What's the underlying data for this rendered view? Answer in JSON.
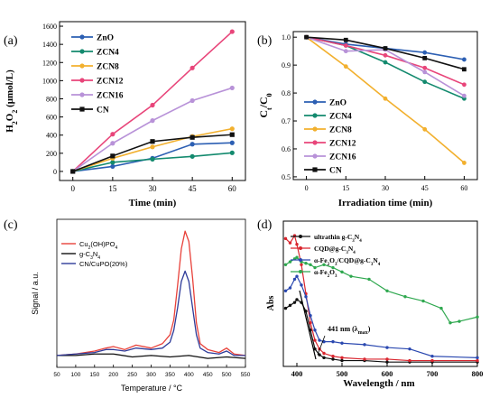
{
  "chart_data": [
    {
      "panel": "(a)",
      "type": "line",
      "xlabel": "Time (min)",
      "ylabel": "H2O2 (μmol/L)",
      "ylabel_parts": {
        "a": "H",
        "b": "2",
        "c": "O",
        "d": "2",
        "e": " (μmol/L)"
      },
      "x": [
        0,
        15,
        30,
        45,
        60
      ],
      "xlim": [
        -5,
        65
      ],
      "ylim": [
        -100,
        1650
      ],
      "xticks": [
        "0",
        "15",
        "30",
        "45",
        "60"
      ],
      "yticks": [
        "0",
        "200",
        "400",
        "600",
        "800",
        "1000",
        "1200",
        "1400",
        "1600"
      ],
      "legend_position": "top-left",
      "series": [
        {
          "name": "ZnO",
          "color": "#2c5fb3",
          "marker": "circle",
          "values": [
            0,
            55,
            145,
            300,
            315
          ]
        },
        {
          "name": "ZCN4",
          "color": "#138a6e",
          "marker": "circle",
          "values": [
            0,
            100,
            135,
            165,
            205
          ]
        },
        {
          "name": "ZCN8",
          "color": "#f2b02e",
          "marker": "circle",
          "values": [
            0,
            145,
            270,
            385,
            470
          ]
        },
        {
          "name": "ZCN12",
          "color": "#e8457a",
          "marker": "circle",
          "values": [
            0,
            410,
            730,
            1140,
            1540
          ]
        },
        {
          "name": "ZCN16",
          "color": "#b892d8",
          "marker": "circle",
          "values": [
            0,
            310,
            560,
            780,
            920
          ]
        },
        {
          "name": "CN",
          "color": "#111111",
          "marker": "square",
          "values": [
            0,
            170,
            330,
            375,
            405
          ]
        }
      ]
    },
    {
      "panel": "(b)",
      "type": "line",
      "xlabel": "Irradiation time (min)",
      "ylabel": "Ct/C0",
      "ylabel_parts": {
        "a": "C",
        "b": "t",
        "c": "/C",
        "d": "0"
      },
      "x": [
        0,
        15,
        30,
        45,
        60
      ],
      "xlim": [
        -5,
        65
      ],
      "ylim": [
        0.49,
        1.02
      ],
      "xticks": [
        "0",
        "15",
        "30",
        "45",
        "60"
      ],
      "yticks": [
        "0.5",
        "0.6",
        "0.7",
        "0.8",
        "0.9",
        "1.0"
      ],
      "legend_position": "bottom-left",
      "series": [
        {
          "name": "ZnO",
          "color": "#2c5fb3",
          "marker": "circle",
          "values": [
            1.0,
            0.975,
            0.96,
            0.945,
            0.92
          ]
        },
        {
          "name": "ZCN4",
          "color": "#138a6e",
          "marker": "circle",
          "values": [
            1.0,
            0.97,
            0.91,
            0.84,
            0.78
          ]
        },
        {
          "name": "ZCN8",
          "color": "#f2b02e",
          "marker": "circle",
          "values": [
            1.0,
            0.895,
            0.78,
            0.67,
            0.55
          ]
        },
        {
          "name": "ZCN12",
          "color": "#e8457a",
          "marker": "circle",
          "values": [
            1.0,
            0.97,
            0.935,
            0.89,
            0.83
          ]
        },
        {
          "name": "ZCN16",
          "color": "#b892d8",
          "marker": "circle",
          "values": [
            1.0,
            0.95,
            0.955,
            0.875,
            0.79
          ]
        },
        {
          "name": "CN",
          "color": "#111111",
          "marker": "square",
          "values": [
            1.0,
            0.99,
            0.96,
            0.925,
            0.885
          ]
        }
      ]
    },
    {
      "panel": "(c)",
      "type": "line",
      "xlabel": "Temperature / °C",
      "ylabel": "Signal / a.u.",
      "xlim": [
        50,
        550
      ],
      "ylim": [
        0,
        100
      ],
      "xticks": [
        "50",
        "100",
        "150",
        "200",
        "250",
        "300",
        "350",
        "400",
        "450",
        "500",
        "550"
      ],
      "legend_position": "top-left",
      "series": [
        {
          "name": "Cu2(OH)PO4",
          "legend_parts": {
            "a": "Cu",
            "b": "2",
            "c": "(OH)PO",
            "d": "4"
          },
          "color": "#e8413a",
          "x": [
            50,
            100,
            150,
            180,
            200,
            230,
            260,
            300,
            330,
            350,
            360,
            370,
            380,
            390,
            400,
            410,
            420,
            430,
            450,
            480,
            500,
            520,
            550
          ],
          "values": [
            8,
            9,
            11,
            13,
            14,
            12,
            15,
            13,
            16,
            22,
            32,
            55,
            80,
            92,
            85,
            60,
            30,
            16,
            12,
            10,
            13,
            9,
            8
          ]
        },
        {
          "name": "g-C3N4",
          "legend_parts": {
            "a": "g-C",
            "b": "3",
            "c": "N",
            "d": "4"
          },
          "color": "#111111",
          "x": [
            50,
            100,
            150,
            200,
            250,
            300,
            350,
            400,
            450,
            500,
            550
          ],
          "values": [
            8,
            8,
            9,
            9,
            7,
            8,
            7,
            8,
            6,
            7,
            6
          ]
        },
        {
          "name": "CN/CuPO(20%)",
          "color": "#2f3c9a",
          "x": [
            50,
            100,
            150,
            180,
            200,
            230,
            260,
            300,
            330,
            350,
            360,
            370,
            380,
            390,
            400,
            410,
            420,
            430,
            450,
            480,
            500,
            520,
            550
          ],
          "values": [
            8,
            9,
            10,
            12,
            12,
            11,
            13,
            12,
            13,
            17,
            25,
            40,
            58,
            65,
            58,
            40,
            22,
            13,
            10,
            9,
            11,
            8,
            8
          ]
        }
      ]
    },
    {
      "panel": "(d)",
      "type": "line",
      "xlabel": "Wavelength / nm",
      "ylabel": "Abs",
      "xlim": [
        370,
        800
      ],
      "ylim": [
        0,
        100
      ],
      "xticks": [
        "400",
        "500",
        "600",
        "700",
        "800"
      ],
      "legend_position": "top-right",
      "annotation": {
        "prefix": "441 nm (λ",
        "sub": "max",
        "suffix": ")",
        "x": 441
      },
      "series": [
        {
          "name": "ultrathin g-C3N4",
          "legend_parts": {
            "a": "ultrathin g-C",
            "b": "3",
            "c": "N",
            "d": "4"
          },
          "color": "#111111",
          "x": [
            375,
            385,
            395,
            400,
            410,
            420,
            430,
            440,
            450,
            460,
            480,
            500,
            550,
            600,
            650,
            700,
            800
          ],
          "values": [
            40,
            42,
            44,
            46,
            44,
            38,
            25,
            12,
            8,
            6,
            5,
            4,
            4,
            3,
            3,
            3,
            3
          ]
        },
        {
          "name": "CQD@g-C3N4",
          "legend_parts": {
            "a": "CQD@g-C",
            "b": "3",
            "c": "N",
            "d": "4"
          },
          "color": "#d9252e",
          "x": [
            375,
            385,
            395,
            400,
            410,
            420,
            430,
            440,
            450,
            460,
            480,
            500,
            550,
            600,
            650,
            700,
            800
          ],
          "values": [
            88,
            85,
            90,
            84,
            70,
            50,
            30,
            18,
            12,
            9,
            7,
            6,
            5,
            5,
            4,
            4,
            4
          ]
        },
        {
          "name": "α-Fe2O3/CQD@g-C3N4",
          "legend_parts": {
            "a": "α-Fe",
            "b": "2",
            "c": "O",
            "d": "3",
            "e": "/CQD@g-C",
            "f": "3",
            "g": "N",
            "h": "4"
          },
          "color": "#2a48b0",
          "x": [
            375,
            385,
            395,
            400,
            410,
            420,
            430,
            440,
            450,
            460,
            480,
            500,
            550,
            600,
            650,
            700,
            800
          ],
          "values": [
            52,
            54,
            60,
            62,
            56,
            48,
            35,
            25,
            18,
            17,
            17,
            16,
            15,
            13,
            12,
            7,
            6
          ]
        },
        {
          "name": "α-Fe2O3",
          "legend_parts": {
            "a": "α-Fe",
            "b": "2",
            "c": "O",
            "d": "3"
          },
          "color": "#2fa84f",
          "x": [
            375,
            385,
            395,
            400,
            410,
            420,
            430,
            440,
            460,
            480,
            500,
            520,
            560,
            600,
            640,
            680,
            720,
            740,
            760,
            800
          ],
          "values": [
            70,
            72,
            74,
            75,
            72,
            71,
            70,
            68,
            70,
            68,
            65,
            62,
            60,
            52,
            48,
            45,
            40,
            30,
            31,
            34
          ]
        }
      ]
    }
  ]
}
